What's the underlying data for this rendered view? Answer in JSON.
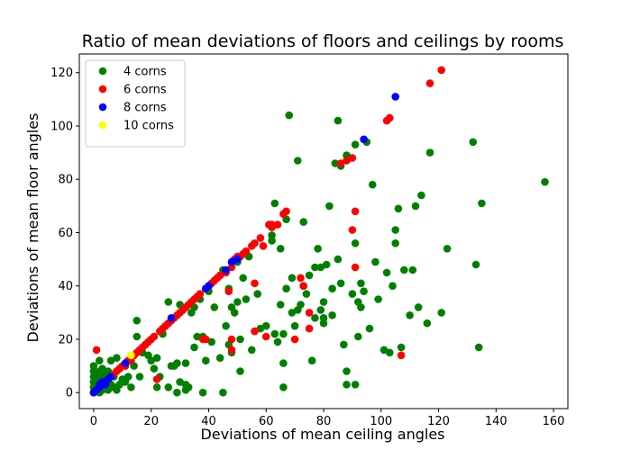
{
  "chart_data": {
    "type": "scatter",
    "title": "Ratio of mean deviations of floors and ceilings by rooms",
    "xlabel": "Deviations of mean ceiling angles",
    "ylabel": "Deviations of mean floor angles",
    "xlim": [
      -5,
      165
    ],
    "ylim": [
      -6,
      127
    ],
    "xticks": [
      0,
      20,
      40,
      60,
      80,
      100,
      120,
      140,
      160
    ],
    "yticks": [
      0,
      20,
      40,
      60,
      80,
      100,
      120
    ],
    "grid": false,
    "legend_position": "top-left",
    "series": [
      {
        "name": "4 corns",
        "color": "#008000",
        "points": [
          [
            0,
            0
          ],
          [
            0,
            2
          ],
          [
            0,
            4
          ],
          [
            0,
            6
          ],
          [
            0,
            8
          ],
          [
            0,
            10
          ],
          [
            1,
            1
          ],
          [
            1,
            3
          ],
          [
            1,
            5
          ],
          [
            1,
            7
          ],
          [
            2,
            0
          ],
          [
            2,
            2
          ],
          [
            2,
            5
          ],
          [
            2,
            8
          ],
          [
            2,
            12
          ],
          [
            3,
            1
          ],
          [
            3,
            4
          ],
          [
            3,
            6
          ],
          [
            3,
            9
          ],
          [
            4,
            2
          ],
          [
            4,
            3
          ],
          [
            4,
            7
          ],
          [
            5,
            1
          ],
          [
            5,
            4
          ],
          [
            5,
            8
          ],
          [
            6,
            3
          ],
          [
            6,
            12
          ],
          [
            7,
            2
          ],
          [
            7,
            6
          ],
          [
            8,
            1
          ],
          [
            8,
            13
          ],
          [
            9,
            3
          ],
          [
            10,
            5
          ],
          [
            11,
            4
          ],
          [
            12,
            6
          ],
          [
            13,
            2
          ],
          [
            14,
            10
          ],
          [
            15,
            21
          ],
          [
            15,
            27
          ],
          [
            16,
            6
          ],
          [
            17,
            15
          ],
          [
            18,
            18
          ],
          [
            19,
            14
          ],
          [
            20,
            12
          ],
          [
            21,
            9
          ],
          [
            22,
            2
          ],
          [
            22,
            13
          ],
          [
            23,
            6
          ],
          [
            24,
            22
          ],
          [
            26,
            34
          ],
          [
            26,
            2
          ],
          [
            27,
            10
          ],
          [
            28,
            10
          ],
          [
            29,
            0
          ],
          [
            29,
            11
          ],
          [
            30,
            33
          ],
          [
            30,
            4
          ],
          [
            31,
            31
          ],
          [
            32,
            1
          ],
          [
            32,
            3
          ],
          [
            32,
            11
          ],
          [
            33,
            2
          ],
          [
            34,
            30
          ],
          [
            35,
            32
          ],
          [
            35,
            17
          ],
          [
            36,
            21
          ],
          [
            37,
            35
          ],
          [
            38,
            0
          ],
          [
            38,
            21
          ],
          [
            39,
            12
          ],
          [
            40,
            38
          ],
          [
            41,
            19
          ],
          [
            42,
            32
          ],
          [
            44,
            44
          ],
          [
            44,
            13
          ],
          [
            45,
            46
          ],
          [
            45,
            0
          ],
          [
            46,
            25
          ],
          [
            47,
            39
          ],
          [
            47,
            18
          ],
          [
            48,
            15
          ],
          [
            48,
            32
          ],
          [
            49,
            30
          ],
          [
            50,
            34
          ],
          [
            50,
            49
          ],
          [
            51,
            20
          ],
          [
            51,
            8
          ],
          [
            52,
            43
          ],
          [
            53,
            35
          ],
          [
            54,
            51
          ],
          [
            55,
            16
          ],
          [
            57,
            37
          ],
          [
            58,
            24
          ],
          [
            60,
            25
          ],
          [
            62,
            57
          ],
          [
            62,
            59
          ],
          [
            63,
            71
          ],
          [
            63,
            22
          ],
          [
            64,
            19
          ],
          [
            65,
            54
          ],
          [
            65,
            33
          ],
          [
            66,
            2
          ],
          [
            66,
            11
          ],
          [
            66,
            22
          ],
          [
            67,
            65
          ],
          [
            67,
            39
          ],
          [
            68,
            104
          ],
          [
            69,
            30
          ],
          [
            69,
            43
          ],
          [
            70,
            25
          ],
          [
            71,
            87
          ],
          [
            71,
            31
          ],
          [
            72,
            33
          ],
          [
            73,
            64
          ],
          [
            73,
            40
          ],
          [
            74,
            37
          ],
          [
            75,
            44
          ],
          [
            76,
            12
          ],
          [
            77,
            28
          ],
          [
            77,
            47
          ],
          [
            78,
            54
          ],
          [
            79,
            31
          ],
          [
            79,
            47
          ],
          [
            80,
            26
          ],
          [
            80,
            34
          ],
          [
            80,
            28
          ],
          [
            81,
            48
          ],
          [
            82,
            70
          ],
          [
            83,
            39
          ],
          [
            83,
            29
          ],
          [
            84,
            86
          ],
          [
            85,
            102
          ],
          [
            85,
            50
          ],
          [
            86,
            85
          ],
          [
            86,
            41
          ],
          [
            87,
            18
          ],
          [
            88,
            89
          ],
          [
            88,
            3
          ],
          [
            88,
            8
          ],
          [
            89,
            88
          ],
          [
            90,
            37
          ],
          [
            91,
            93
          ],
          [
            91,
            3
          ],
          [
            91,
            56
          ],
          [
            92,
            34
          ],
          [
            92,
            21
          ],
          [
            93,
            32
          ],
          [
            93,
            41
          ],
          [
            94,
            38
          ],
          [
            95,
            94
          ],
          [
            96,
            24
          ],
          [
            97,
            78
          ],
          [
            98,
            49
          ],
          [
            99,
            35
          ],
          [
            101,
            16
          ],
          [
            102,
            45
          ],
          [
            103,
            15
          ],
          [
            104,
            40
          ],
          [
            105,
            56
          ],
          [
            105,
            61
          ],
          [
            106,
            69
          ],
          [
            107,
            17
          ],
          [
            108,
            46
          ],
          [
            110,
            29
          ],
          [
            111,
            46
          ],
          [
            112,
            70
          ],
          [
            113,
            32
          ],
          [
            114,
            74
          ],
          [
            116,
            26
          ],
          [
            117,
            90
          ],
          [
            121,
            30
          ],
          [
            123,
            54
          ],
          [
            132,
            94
          ],
          [
            133,
            48
          ],
          [
            134,
            17
          ],
          [
            135,
            71
          ],
          [
            157,
            79
          ]
        ]
      },
      {
        "name": "6 corns",
        "color": "#ff0000",
        "points": [
          [
            1,
            16
          ],
          [
            1,
            1
          ],
          [
            2,
            2
          ],
          [
            3,
            3
          ],
          [
            4,
            4
          ],
          [
            5,
            5
          ],
          [
            6,
            6
          ],
          [
            7,
            7
          ],
          [
            8,
            8
          ],
          [
            9,
            9
          ],
          [
            10,
            10
          ],
          [
            11,
            10
          ],
          [
            12,
            12
          ],
          [
            13,
            12
          ],
          [
            14,
            14
          ],
          [
            15,
            15
          ],
          [
            16,
            16
          ],
          [
            17,
            17
          ],
          [
            18,
            18
          ],
          [
            19,
            19
          ],
          [
            20,
            20
          ],
          [
            21,
            21
          ],
          [
            22,
            5
          ],
          [
            23,
            23
          ],
          [
            24,
            24
          ],
          [
            25,
            25
          ],
          [
            26,
            26
          ],
          [
            27,
            27
          ],
          [
            28,
            28
          ],
          [
            29,
            29
          ],
          [
            30,
            30
          ],
          [
            31,
            31
          ],
          [
            32,
            32
          ],
          [
            33,
            33
          ],
          [
            34,
            34
          ],
          [
            35,
            35
          ],
          [
            36,
            36
          ],
          [
            37,
            37
          ],
          [
            38,
            20
          ],
          [
            39,
            39
          ],
          [
            39,
            20
          ],
          [
            40,
            40
          ],
          [
            41,
            41
          ],
          [
            42,
            42
          ],
          [
            43,
            43
          ],
          [
            44,
            44
          ],
          [
            46,
            45
          ],
          [
            47,
            38
          ],
          [
            48,
            47
          ],
          [
            48,
            16
          ],
          [
            48,
            20
          ],
          [
            49,
            50
          ],
          [
            50,
            51
          ],
          [
            51,
            51
          ],
          [
            52,
            52
          ],
          [
            53,
            53
          ],
          [
            55,
            55
          ],
          [
            56,
            56
          ],
          [
            56,
            41
          ],
          [
            56,
            23
          ],
          [
            58,
            58
          ],
          [
            59,
            55
          ],
          [
            60,
            21
          ],
          [
            61,
            63
          ],
          [
            62,
            63
          ],
          [
            62,
            62
          ],
          [
            64,
            63
          ],
          [
            66,
            67
          ],
          [
            67,
            68
          ],
          [
            70,
            20
          ],
          [
            72,
            43
          ],
          [
            73,
            40
          ],
          [
            75,
            24
          ],
          [
            75,
            30
          ],
          [
            86,
            86
          ],
          [
            88,
            87
          ],
          [
            90,
            88
          ],
          [
            90,
            61
          ],
          [
            91,
            68
          ],
          [
            91,
            47
          ],
          [
            102,
            102
          ],
          [
            103,
            103
          ],
          [
            107,
            14
          ],
          [
            117,
            116
          ],
          [
            121,
            121
          ]
        ]
      },
      {
        "name": "8 corns",
        "color": "#0000ff",
        "points": [
          [
            0,
            0
          ],
          [
            1,
            1
          ],
          [
            2,
            2
          ],
          [
            2,
            3
          ],
          [
            3,
            4
          ],
          [
            4,
            3
          ],
          [
            5,
            5
          ],
          [
            6,
            6
          ],
          [
            11,
            11
          ],
          [
            27,
            28
          ],
          [
            39,
            39
          ],
          [
            40,
            40
          ],
          [
            46,
            46
          ],
          [
            48,
            49
          ],
          [
            50,
            50
          ],
          [
            94,
            95
          ],
          [
            105,
            111
          ]
        ]
      },
      {
        "name": "10 corns",
        "color": "#ffff00",
        "points": [
          [
            13,
            14
          ]
        ]
      }
    ]
  }
}
